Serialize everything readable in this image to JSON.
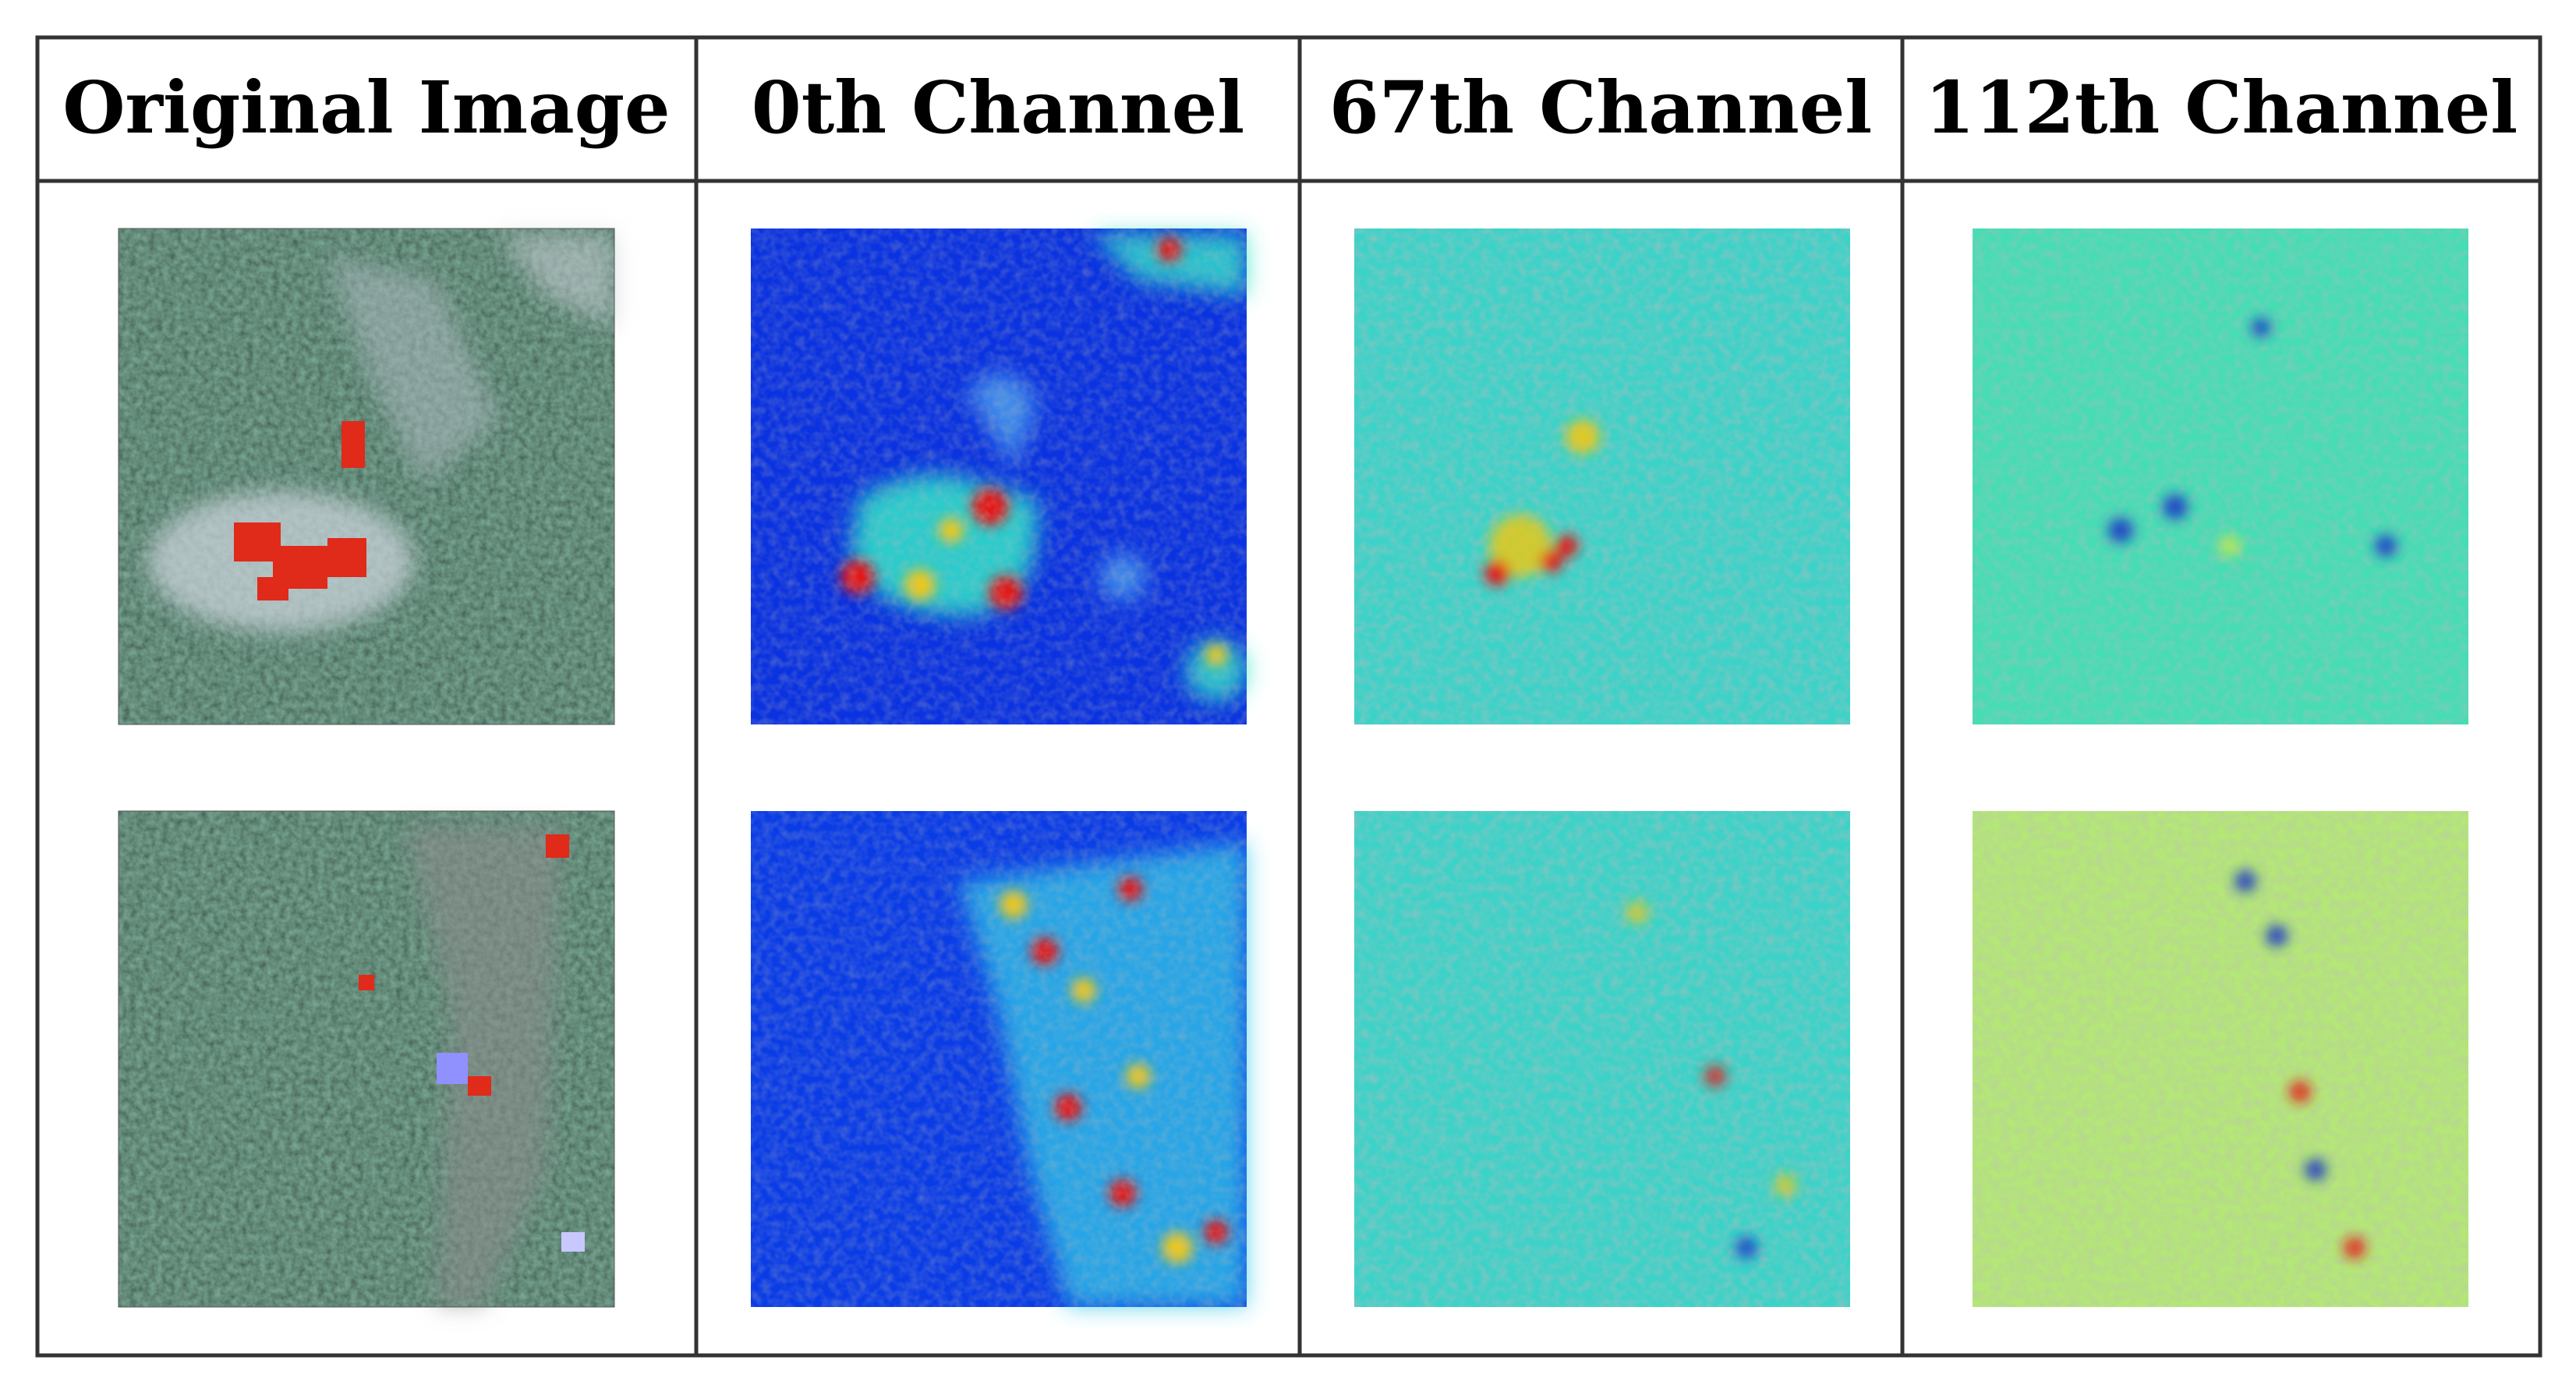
{
  "table": {
    "headers": [
      "Original Image",
      "0th Channel",
      "67th Channel",
      "112th Channel"
    ]
  },
  "rows": [
    {
      "cells": [
        "aerial-image",
        "heatmap",
        "heatmap",
        "heatmap"
      ]
    },
    {
      "cells": [
        "aerial-image",
        "heatmap",
        "heatmap",
        "heatmap"
      ]
    }
  ],
  "colors": {
    "border": "#333333",
    "jet_low": "#0a32e0",
    "jet_mid": "#32e6c8",
    "jet_high": "#e61414"
  }
}
